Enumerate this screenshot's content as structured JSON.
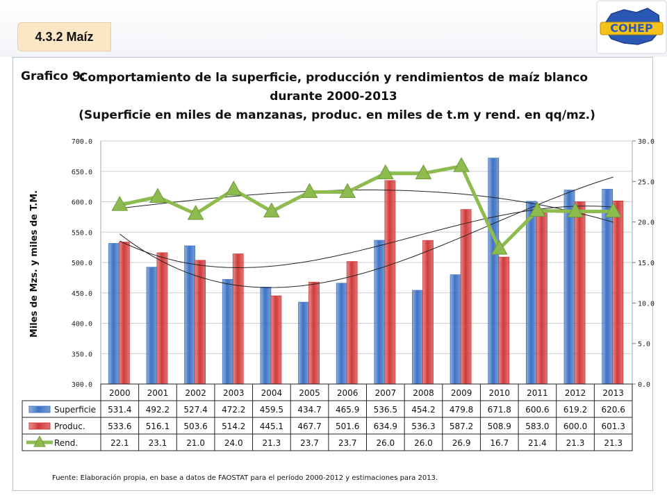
{
  "header": {
    "section_label": "4.3.2 Maíz",
    "logo_text": "COHEP"
  },
  "colors": {
    "superficie": "#3e73c4",
    "produccion": "#d13a3a",
    "rendimiento": "#8dbb4e",
    "frame_border": "#b9c3cf",
    "tab_bg": "#fbe7c6"
  },
  "chart_data": {
    "type": "bar",
    "figure_label": "Grafico 9:",
    "title_lines": [
      "Comportamiento de la superficie, producción y rendimientos de maíz blanco",
      "durante 2000-2013",
      "(Superficie en miles de manzanas, produc. en miles de t.m y rend. en  qq/mz.)"
    ],
    "ylabel": "Miles de Mzs. y miles de T.M.",
    "ylim": [
      300,
      700
    ],
    "yticks": [
      "300.0",
      "350.0",
      "400.0",
      "450.0",
      "500.0",
      "550.0",
      "600.0",
      "650.0",
      "700.0"
    ],
    "y2lim": [
      0,
      30
    ],
    "y2ticks": [
      "0.0",
      "5.0",
      "10.0",
      "15.0",
      "20.0",
      "25.0",
      "30.0"
    ],
    "categories": [
      "2000",
      "2001",
      "2002",
      "2003",
      "2004",
      "2005",
      "2006",
      "2007",
      "2008",
      "2009",
      "2010",
      "2011",
      "2012",
      "2013"
    ],
    "series": [
      {
        "name": "Superficie",
        "type": "bar",
        "axis": "left",
        "values": [
          531.4,
          492.2,
          527.4,
          472.2,
          459.5,
          434.7,
          465.9,
          536.5,
          454.2,
          479.8,
          671.8,
          600.6,
          619.2,
          620.6
        ],
        "labels": [
          "531.4",
          "492.2",
          "527.4",
          "472.2",
          "459.5",
          "434.7",
          "465.9",
          "536.5",
          "454.2",
          "479.8",
          "671.8",
          "600.6",
          "619.2",
          "620.6"
        ]
      },
      {
        "name": "Produc.",
        "type": "bar",
        "axis": "left",
        "values": [
          533.6,
          516.1,
          503.6,
          514.2,
          445.1,
          467.7,
          501.6,
          634.9,
          536.3,
          587.2,
          508.9,
          583.0,
          600.0,
          601.3
        ],
        "labels": [
          "533.6",
          "516.1",
          "503.6",
          "514.2",
          "445.1",
          "467.7",
          "501.6",
          "634.9",
          "536.3",
          "587.2",
          "508.9",
          "583.0",
          "600.0",
          "601.3"
        ]
      },
      {
        "name": "Rend.",
        "type": "line",
        "axis": "right",
        "values": [
          22.1,
          23.1,
          21.0,
          24.0,
          21.3,
          23.7,
          23.7,
          26.0,
          26.0,
          26.9,
          16.7,
          21.4,
          21.3,
          21.3
        ],
        "labels": [
          "22.1",
          "23.1",
          "21.0",
          "24.0",
          "21.3",
          "23.7",
          "23.7",
          "26.0",
          "26.0",
          "26.9",
          "16.7",
          "21.4",
          "21.3",
          "21.3"
        ]
      }
    ],
    "grid": true,
    "legend": "data-table",
    "trendlines": "polynomial"
  },
  "footer": {
    "source": "Fuente: Elaboración propia, en base a datos de FAOSTAT para  el período 2000-2012 y estimaciones para 2013."
  }
}
